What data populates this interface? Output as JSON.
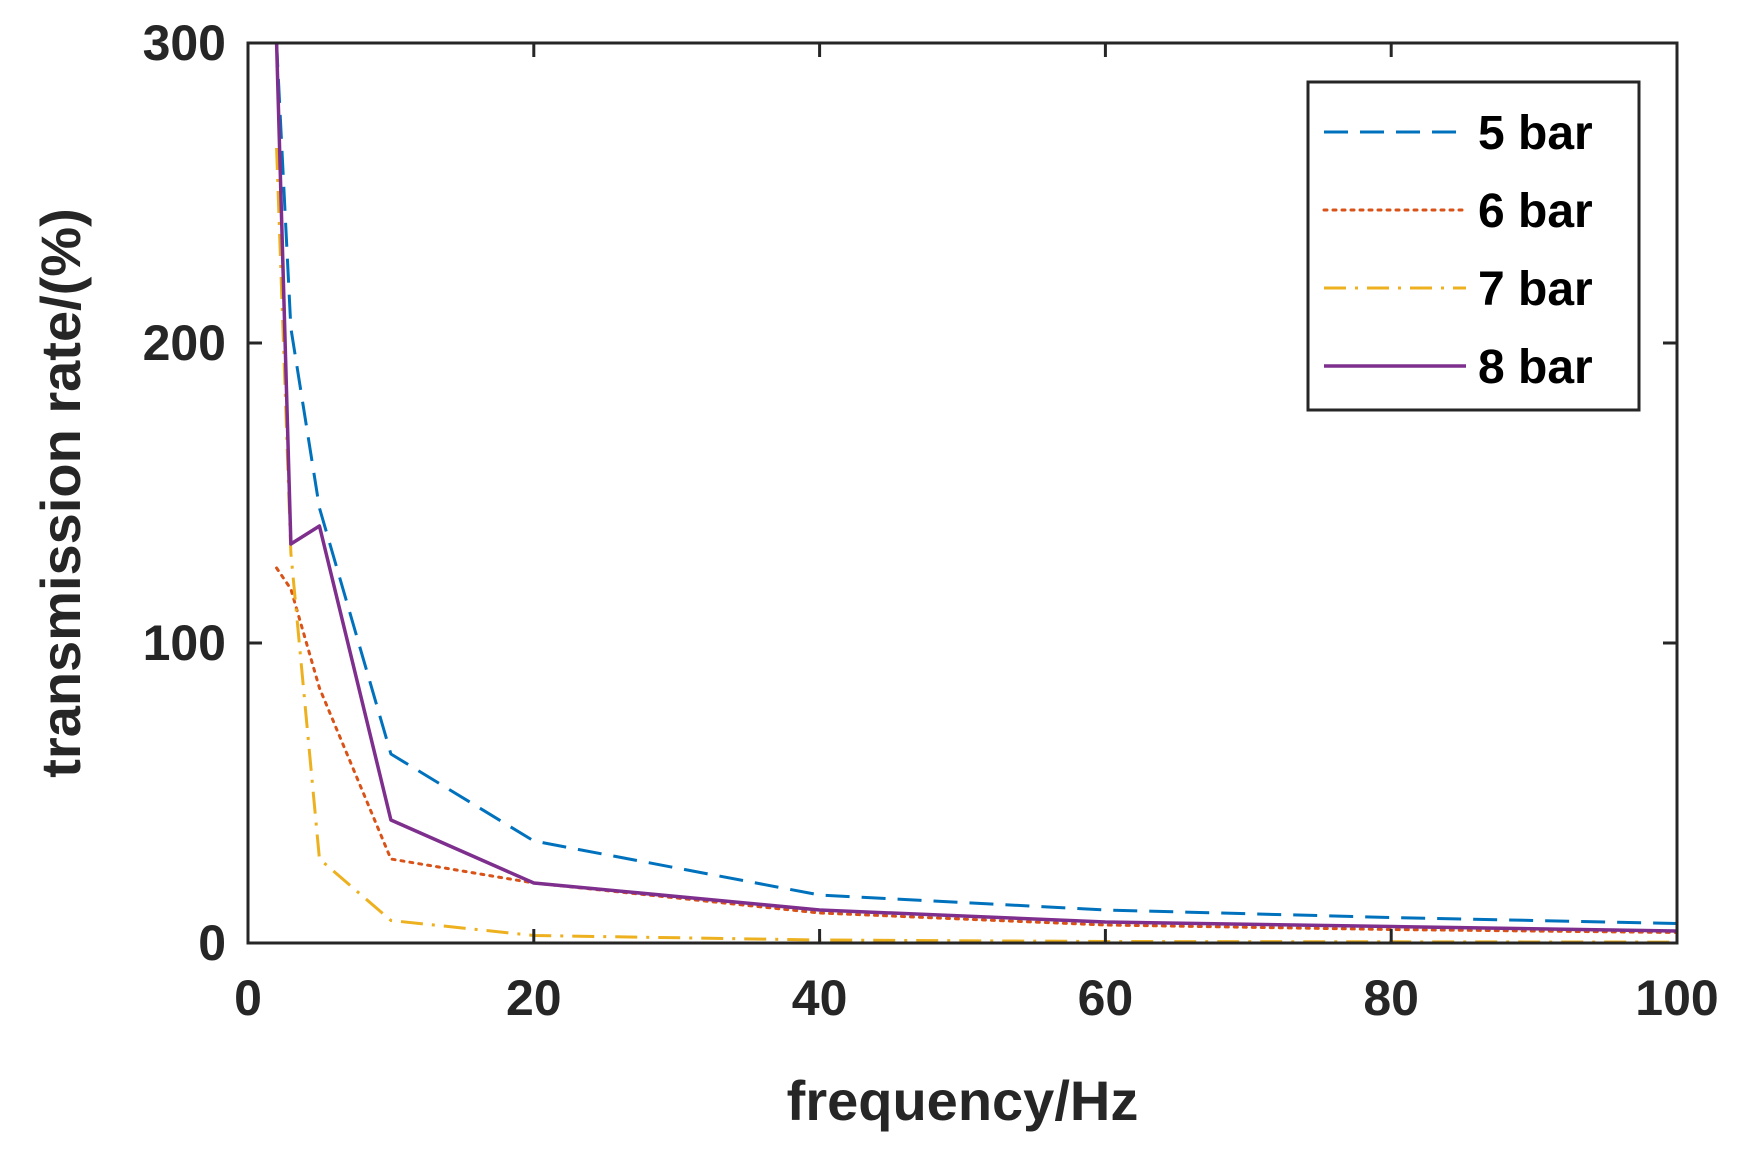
{
  "chart_data": {
    "type": "line",
    "title": "",
    "xlabel": "frequency/Hz",
    "ylabel": "transmission rate/(%)",
    "xlim": [
      0,
      100
    ],
    "ylim": [
      0,
      300
    ],
    "xticks": [
      0,
      20,
      40,
      60,
      80,
      100
    ],
    "yticks": [
      0,
      100,
      200,
      300
    ],
    "xtick_labels": [
      "0",
      "20",
      "40",
      "60",
      "80",
      "100"
    ],
    "ytick_labels": [
      "0",
      "100",
      "200",
      "300"
    ],
    "grid": false,
    "legend_position": "top-right",
    "series": [
      {
        "name": "5 bar",
        "color": "#0072BD",
        "style": "dashed",
        "x": [
          2,
          3,
          5,
          10,
          20,
          40,
          60,
          80,
          100
        ],
        "y": [
          300,
          205,
          145,
          63,
          34,
          16,
          11,
          8.5,
          6.5
        ]
      },
      {
        "name": "6 bar",
        "color": "#D95319",
        "style": "dotted",
        "x": [
          2,
          3,
          5,
          10,
          20,
          40,
          60,
          80,
          100
        ],
        "y": [
          125,
          118,
          85,
          28,
          20,
          10,
          6,
          4.5,
          3.5
        ]
      },
      {
        "name": "7 bar",
        "color": "#EDB120",
        "style": "dashdot",
        "x": [
          2,
          3,
          5,
          10,
          20,
          40,
          60,
          80,
          100
        ],
        "y": [
          265,
          130,
          28,
          7.5,
          2.5,
          1.0,
          0.5,
          0.4,
          0.3
        ]
      },
      {
        "name": "8 bar",
        "color": "#7E2F8E",
        "style": "solid",
        "x": [
          2,
          3,
          5,
          10,
          20,
          40,
          60,
          80,
          100
        ],
        "y": [
          300,
          133,
          139,
          41,
          20,
          11,
          7,
          5.5,
          4
        ]
      }
    ]
  }
}
